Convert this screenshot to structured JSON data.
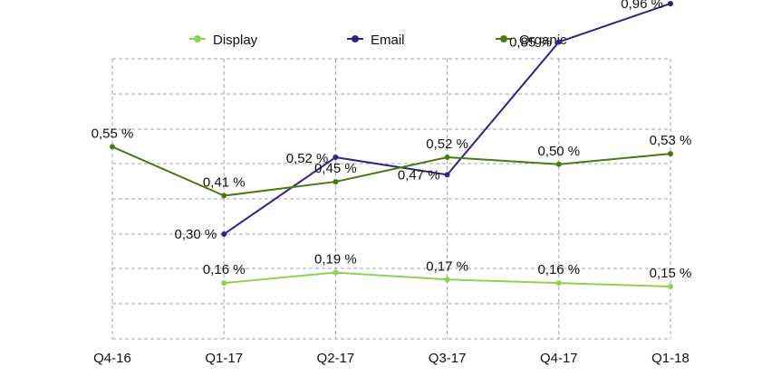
{
  "chart_data": {
    "type": "line",
    "title": "",
    "xlabel": "",
    "ylabel": "",
    "categories": [
      "Q4-16",
      "Q1-17",
      "Q2-17",
      "Q3-17",
      "Q4-17",
      "Q1-18"
    ],
    "ylim": [
      0,
      1.0
    ],
    "grid": true,
    "legend": "top",
    "series": [
      {
        "name": "Display",
        "color": "#92d050",
        "values": [
          null,
          0.16,
          0.19,
          0.17,
          0.16,
          0.15
        ],
        "labels": [
          "",
          "0,16 %",
          "0,19 %",
          "0,17 %",
          "0,16 %",
          "0,15 %"
        ]
      },
      {
        "name": "Email",
        "color": "#2e2483",
        "values": [
          null,
          0.3,
          0.52,
          0.47,
          0.85,
          0.96
        ],
        "labels": [
          "",
          "0,30 %",
          "0,52 %",
          "0,47 %",
          "0,85 %",
          "0,96 %"
        ]
      },
      {
        "name": "Organic",
        "color": "#4a7a0e",
        "values": [
          0.55,
          0.41,
          0.45,
          0.52,
          0.5,
          0.53
        ],
        "labels": [
          "0,55 %",
          "0,41 %",
          "0,45 %",
          "0,52 %",
          "0,50 %",
          "0,53 %"
        ]
      }
    ]
  }
}
